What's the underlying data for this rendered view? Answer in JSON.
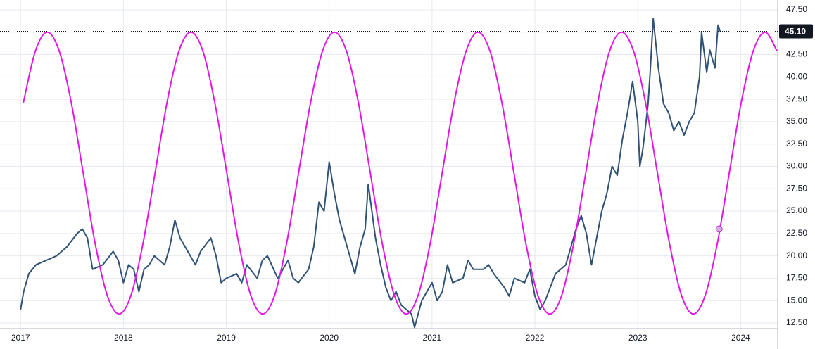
{
  "chart_data": {
    "type": "line",
    "xlim": [
      2016.8,
      2024.36
    ],
    "ylim": [
      11.87,
      48.6
    ],
    "xticks": [
      2017,
      2018,
      2019,
      2020,
      2021,
      2022,
      2023,
      2024
    ],
    "yticks": [
      {
        "value": 12.5,
        "label": "12.50"
      },
      {
        "value": 15,
        "label": "15.00"
      },
      {
        "value": 17.5,
        "label": "17.50"
      },
      {
        "value": 20,
        "label": "20.00"
      },
      {
        "value": 22.5,
        "label": "22.50"
      },
      {
        "value": 25,
        "label": "25.00"
      },
      {
        "value": 27.5,
        "label": "27.50"
      },
      {
        "value": 30,
        "label": "30.00"
      },
      {
        "value": 32.5,
        "label": "32.50"
      },
      {
        "value": 35,
        "label": "35.00"
      },
      {
        "value": 37.5,
        "label": "37.50"
      },
      {
        "value": 40,
        "label": "40.00"
      },
      {
        "value": 42.5,
        "label": "42.50"
      },
      {
        "value": 45,
        "label": "45.00"
      },
      {
        "value": 47.5,
        "label": "47.50"
      }
    ],
    "grid": true,
    "last_price": {
      "value": 45.1,
      "label": "45.10",
      "color": "#131722"
    },
    "series": [
      {
        "color": "#2f5276",
        "smooth": false,
        "x": [
          2017.0,
          2017.03,
          2017.08,
          2017.15,
          2017.25,
          2017.35,
          2017.45,
          2017.55,
          2017.6,
          2017.65,
          2017.7,
          2017.8,
          2017.9,
          2017.95,
          2018.0,
          2018.05,
          2018.1,
          2018.15,
          2018.2,
          2018.25,
          2018.3,
          2018.4,
          2018.45,
          2018.5,
          2018.55,
          2018.6,
          2018.7,
          2018.75,
          2018.85,
          2018.9,
          2018.95,
          2019.0,
          2019.1,
          2019.15,
          2019.2,
          2019.3,
          2019.35,
          2019.4,
          2019.5,
          2019.55,
          2019.6,
          2019.65,
          2019.7,
          2019.8,
          2019.85,
          2019.9,
          2019.95,
          2020.0,
          2020.05,
          2020.1,
          2020.15,
          2020.2,
          2020.25,
          2020.3,
          2020.35,
          2020.38,
          2020.45,
          2020.5,
          2020.55,
          2020.6,
          2020.65,
          2020.7,
          2020.75,
          2020.8,
          2020.83,
          2020.9,
          2021.0,
          2021.05,
          2021.1,
          2021.15,
          2021.2,
          2021.3,
          2021.35,
          2021.4,
          2021.5,
          2021.55,
          2021.6,
          2021.7,
          2021.75,
          2021.8,
          2021.9,
          2021.95,
          2022.0,
          2022.05,
          2022.1,
          2022.15,
          2022.2,
          2022.3,
          2022.35,
          2022.4,
          2022.45,
          2022.5,
          2022.55,
          2022.6,
          2022.65,
          2022.7,
          2022.75,
          2022.8,
          2022.85,
          2022.9,
          2022.95,
          2023.0,
          2023.02,
          2023.05,
          2023.1,
          2023.12,
          2023.15,
          2023.2,
          2023.25,
          2023.3,
          2023.35,
          2023.4,
          2023.45,
          2023.5,
          2023.55,
          2023.6,
          2023.62,
          2023.67,
          2023.7,
          2023.75,
          2023.78,
          2023.8
        ],
        "values": [
          14,
          16,
          18,
          19,
          19.5,
          20,
          21,
          22.5,
          23,
          22,
          18.5,
          19,
          20.5,
          19.5,
          17,
          19,
          18.5,
          16,
          18.5,
          19,
          20,
          19,
          21,
          24,
          22,
          21,
          19,
          20.5,
          22,
          20,
          17,
          17.5,
          18,
          17,
          19,
          17.5,
          19.5,
          20,
          17.5,
          18.5,
          19.5,
          17.5,
          17,
          18.5,
          21,
          26,
          25,
          30.5,
          27,
          24,
          22,
          20,
          18,
          21,
          23,
          28,
          22,
          19,
          16.5,
          15,
          16,
          14.5,
          14,
          13.5,
          12,
          15,
          17,
          15,
          16,
          19,
          17,
          17.5,
          19.5,
          18.5,
          18.5,
          19,
          18,
          16.5,
          15.5,
          17.5,
          17,
          18.5,
          15.5,
          14,
          15,
          16.5,
          18,
          19,
          21,
          23,
          24.5,
          22.5,
          19,
          22,
          25,
          27,
          30,
          29,
          33,
          36,
          39.5,
          35,
          30,
          32,
          37,
          40.5,
          46.5,
          41,
          37,
          36,
          34,
          35,
          33.5,
          35,
          36,
          40,
          45,
          40.5,
          43,
          41,
          45.8,
          45.1
        ]
      },
      {
        "color": "#e317e3",
        "smooth": true,
        "x": [
          2017.027,
          2017.144,
          2017.26,
          2017.376,
          2017.493,
          2017.609,
          2017.725,
          2017.842,
          2017.958,
          2018.074,
          2018.19,
          2018.307,
          2018.423,
          2018.539,
          2018.656,
          2018.772,
          2018.888,
          2019.005,
          2019.121,
          2019.237,
          2019.353,
          2019.47,
          2019.586,
          2019.702,
          2019.819,
          2019.935,
          2020.051,
          2020.168,
          2020.284,
          2020.4,
          2020.516,
          2020.633,
          2020.749,
          2020.865,
          2020.982,
          2021.098,
          2021.214,
          2021.331,
          2021.447,
          2021.563,
          2021.679,
          2021.796,
          2021.912,
          2022.028,
          2022.145,
          2022.261,
          2022.377,
          2022.494,
          2022.61,
          2022.726,
          2022.842,
          2022.959,
          2023.075,
          2023.191,
          2023.308,
          2023.424,
          2023.54,
          2023.656,
          2023.773,
          2023.889,
          2024.005,
          2024.122,
          2024.238,
          2024.354
        ],
        "values": [
          37.13,
          42.89,
          45,
          42.89,
          37.13,
          29.25,
          21.38,
          15.61,
          13.5,
          15.61,
          21.38,
          29.25,
          37.13,
          42.89,
          45,
          42.89,
          37.13,
          29.25,
          21.38,
          15.61,
          13.5,
          15.61,
          21.38,
          29.25,
          37.13,
          42.89,
          45,
          42.89,
          37.13,
          29.25,
          21.38,
          15.61,
          13.5,
          15.61,
          21.38,
          29.25,
          37.13,
          42.89,
          45,
          42.89,
          37.13,
          29.25,
          21.38,
          15.61,
          13.5,
          15.61,
          21.38,
          29.25,
          37.13,
          42.89,
          45,
          42.89,
          37.13,
          29.25,
          21.38,
          15.61,
          13.5,
          15.61,
          21.38,
          29.25,
          37.13,
          42.89,
          45,
          42.89
        ]
      }
    ],
    "marker": {
      "x": 2023.79,
      "value": 23,
      "color": "#e3a6ea"
    }
  }
}
